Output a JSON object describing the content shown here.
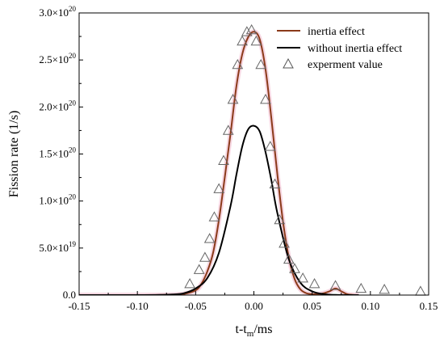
{
  "chart_data": {
    "type": "line",
    "xlabel": "t-t",
    "xlabel_sub": "m",
    "xlabel_tail": "/ms",
    "ylabel": "Fission rate (1/s)",
    "xlim": [
      -0.15,
      0.15
    ],
    "ylim": [
      0,
      3e+20
    ],
    "grid": false,
    "legend_position": "top-right",
    "x_ticks": [
      -0.15,
      -0.1,
      -0.05,
      0.0,
      0.05,
      0.1,
      0.15
    ],
    "x_tick_labels": [
      "-0.15",
      "-0.10",
      "-0.05",
      "0.00",
      "0.05",
      "0.10",
      "0.15"
    ],
    "y_ticks": [
      0,
      5e+19,
      1e+20,
      1.5e+20,
      2e+20,
      2.5e+20,
      3e+20
    ],
    "y_tick_labels": [
      {
        "mantissa": "0.0",
        "exp": ""
      },
      {
        "mantissa": "5.0×10",
        "exp": "19"
      },
      {
        "mantissa": "1.0×10",
        "exp": "20"
      },
      {
        "mantissa": "1.5×10",
        "exp": "20"
      },
      {
        "mantissa": "2.0×10",
        "exp": "20"
      },
      {
        "mantissa": "2.5×10",
        "exp": "20"
      },
      {
        "mantissa": "3.0×10",
        "exp": "20"
      }
    ],
    "series": [
      {
        "name": "inertia effect",
        "kind": "line",
        "color": "#8b3a1a",
        "x": [
          -0.15,
          -0.09,
          -0.07,
          -0.06,
          -0.05,
          -0.045,
          -0.04,
          -0.035,
          -0.03,
          -0.025,
          -0.02,
          -0.015,
          -0.01,
          -0.005,
          0.0,
          0.005,
          0.01,
          0.015,
          0.02,
          0.025,
          0.03,
          0.035,
          0.04,
          0.045,
          0.05,
          0.055,
          0.06,
          0.065,
          0.07,
          0.075,
          0.08,
          0.085,
          0.09
        ],
        "y": [
          0,
          0,
          4e+17,
          1.2e+18,
          5e+18,
          1.2e+19,
          2.5e+19,
          4.5e+19,
          8e+19,
          1.25e+20,
          1.72e+20,
          2.22e+20,
          2.56e+20,
          2.74e+20,
          2.8e+20,
          2.72e+20,
          2.4e+20,
          1.88e+20,
          1.3e+20,
          7.8e+19,
          4e+19,
          1.7e+19,
          6e+18,
          2e+18,
          1e+18,
          1e+18,
          2e+18,
          4e+18,
          7e+18,
          4e+18,
          1e+18,
          2e+17,
          0
        ]
      },
      {
        "name": "without inertia effect",
        "kind": "line",
        "color": "#000000",
        "x": [
          -0.15,
          -0.1,
          -0.08,
          -0.07,
          -0.06,
          -0.05,
          -0.04,
          -0.03,
          -0.02,
          -0.015,
          -0.01,
          -0.005,
          0.0,
          0.005,
          0.01,
          0.015,
          0.02,
          0.03,
          0.04,
          0.05,
          0.06,
          0.07,
          0.09
        ],
        "y": [
          0,
          0,
          2e+17,
          6e+17,
          2e+18,
          7e+18,
          1.8e+19,
          4.5e+19,
          9.5e+19,
          1.28e+20,
          1.58e+20,
          1.76e+20,
          1.8e+20,
          1.74e+20,
          1.52e+20,
          1.22e+20,
          8.8e+19,
          3.8e+19,
          1.3e+19,
          4e+18,
          1e+18,
          2e+17,
          0
        ]
      },
      {
        "name": "experment value",
        "kind": "scatter",
        "color": "#666666",
        "x": [
          -0.055,
          -0.047,
          -0.042,
          -0.038,
          -0.034,
          -0.03,
          -0.026,
          -0.022,
          -0.018,
          -0.014,
          -0.01,
          -0.006,
          -0.002,
          0.002,
          0.006,
          0.01,
          0.014,
          0.018,
          0.022,
          0.026,
          0.03,
          0.035,
          0.042,
          0.052,
          0.07,
          0.092,
          0.112,
          0.143
        ],
        "y": [
          1.2e+19,
          2.7e+19,
          4e+19,
          6e+19,
          8.3e+19,
          1.13e+20,
          1.43e+20,
          1.75e+20,
          2.08e+20,
          2.45e+20,
          2.7e+20,
          2.8e+20,
          2.82e+20,
          2.7e+20,
          2.45e+20,
          2.08e+20,
          1.58e+20,
          1.18e+20,
          8e+19,
          5.5e+19,
          3.8e+19,
          2.8e+19,
          1.8e+19,
          1.2e+19,
          1e+19,
          7e+18,
          6e+18,
          4e+18
        ]
      }
    ]
  }
}
